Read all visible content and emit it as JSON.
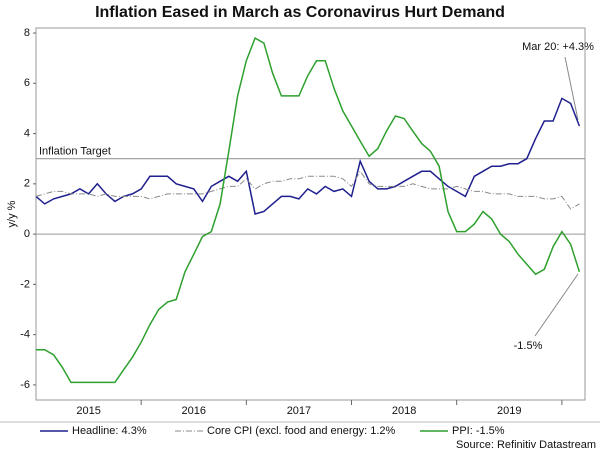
{
  "chart_data": {
    "type": "line",
    "title": "Inflation Eased in March as Coronavirus Hurt Demand",
    "y_label": "y/y %",
    "source": "Source: Refinitiv Datastream",
    "x": [
      2015,
      2015.083,
      2015.167,
      2015.25,
      2015.333,
      2015.417,
      2015.5,
      2015.583,
      2015.667,
      2015.75,
      2015.833,
      2015.917,
      2016,
      2016.083,
      2016.167,
      2016.25,
      2016.333,
      2016.417,
      2016.5,
      2016.583,
      2016.667,
      2016.75,
      2016.833,
      2016.917,
      2017,
      2017.083,
      2017.167,
      2017.25,
      2017.333,
      2017.417,
      2017.5,
      2017.583,
      2017.667,
      2017.75,
      2017.833,
      2017.917,
      2018,
      2018.083,
      2018.167,
      2018.25,
      2018.333,
      2018.417,
      2018.5,
      2018.583,
      2018.667,
      2018.75,
      2018.833,
      2018.917,
      2019,
      2019.083,
      2019.167,
      2019.25,
      2019.333,
      2019.417,
      2019.5,
      2019.583,
      2019.667,
      2019.75,
      2019.833,
      2019.917,
      2020,
      2020.083,
      2020.167
    ],
    "series": [
      {
        "name": "Headline: 4.3%",
        "color": "#1f1f8f",
        "dash": "none",
        "values": [
          1.5,
          1.2,
          1.4,
          1.5,
          1.6,
          1.8,
          1.6,
          2.0,
          1.6,
          1.3,
          1.5,
          1.6,
          1.8,
          2.3,
          2.3,
          2.3,
          2.0,
          1.9,
          1.8,
          1.3,
          1.9,
          2.1,
          2.3,
          2.1,
          2.5,
          0.8,
          0.9,
          1.2,
          1.5,
          1.5,
          1.4,
          1.8,
          1.6,
          1.9,
          1.7,
          1.8,
          1.5,
          2.9,
          2.1,
          1.8,
          1.8,
          1.9,
          2.1,
          2.3,
          2.5,
          2.5,
          2.2,
          1.9,
          1.7,
          1.5,
          2.3,
          2.5,
          2.7,
          2.7,
          2.8,
          2.8,
          3.0,
          3.8,
          4.5,
          4.5,
          5.4,
          5.2,
          4.3
        ]
      },
      {
        "name": "Core CPI (excl. food and energy: 1.2%",
        "color": "#8a8a8a",
        "dash": "6 2 1 2",
        "values": [
          1.5,
          1.6,
          1.7,
          1.7,
          1.6,
          1.6,
          1.6,
          1.5,
          1.6,
          1.5,
          1.5,
          1.5,
          1.5,
          1.4,
          1.5,
          1.6,
          1.6,
          1.6,
          1.6,
          1.6,
          1.7,
          1.8,
          1.9,
          1.9,
          2.2,
          1.8,
          2.0,
          2.1,
          2.1,
          2.2,
          2.2,
          2.3,
          2.3,
          2.3,
          2.3,
          2.2,
          1.9,
          2.5,
          2.0,
          1.9,
          1.9,
          1.9,
          1.9,
          2.0,
          1.9,
          1.8,
          1.8,
          1.8,
          1.9,
          1.8,
          1.7,
          1.7,
          1.6,
          1.6,
          1.6,
          1.5,
          1.5,
          1.5,
          1.4,
          1.4,
          1.5,
          1.0,
          1.2
        ]
      },
      {
        "name": "PPI: -1.5%",
        "color": "#2ea02e",
        "dash": "none",
        "values": [
          -4.6,
          -4.6,
          -4.8,
          -5.3,
          -5.9,
          -5.9,
          -5.9,
          -5.9,
          -5.9,
          -5.9,
          -5.4,
          -4.9,
          -4.3,
          -3.6,
          -3.0,
          -2.7,
          -2.6,
          -1.5,
          -0.8,
          -0.1,
          0.1,
          1.2,
          3.3,
          5.5,
          6.9,
          7.8,
          7.6,
          6.4,
          5.5,
          5.5,
          5.5,
          6.3,
          6.9,
          6.9,
          5.8,
          4.9,
          4.3,
          3.7,
          3.1,
          3.4,
          4.1,
          4.7,
          4.6,
          4.1,
          3.6,
          3.3,
          2.7,
          0.9,
          0.1,
          0.1,
          0.4,
          0.9,
          0.6,
          0.0,
          -0.3,
          -0.8,
          -1.2,
          -1.6,
          -1.4,
          -0.5,
          0.1,
          -0.4,
          -1.5
        ]
      }
    ],
    "xlim": [
      2015,
      2020.22
    ],
    "xticks": [
      2016,
      2017,
      2018,
      2019,
      2020
    ],
    "xtick_labels": [
      {
        "value": 2015.5,
        "label": "2015"
      },
      {
        "value": 2016.5,
        "label": "2016"
      },
      {
        "value": 2017.5,
        "label": "2017"
      },
      {
        "value": 2018.5,
        "label": "2018"
      },
      {
        "value": 2019.5,
        "label": "2019"
      }
    ],
    "ylim": [
      -6.6,
      8.2
    ],
    "yticks": [
      -6,
      -4,
      -2,
      0,
      2,
      4,
      6,
      8
    ],
    "grid": false,
    "reference_lines": [
      {
        "value": 3,
        "label": "Inflation Target"
      }
    ],
    "annotations": [
      "Mar 20: +4.3%",
      "-1.5%"
    ]
  }
}
